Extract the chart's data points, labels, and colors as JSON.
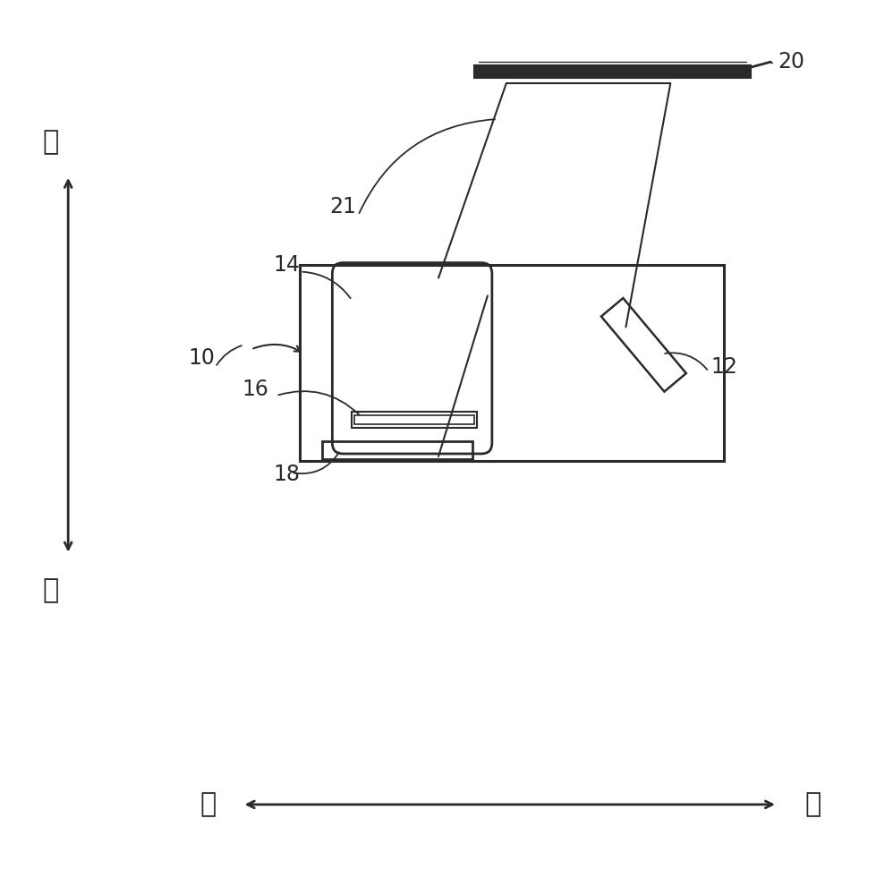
{
  "bg_color": "#ffffff",
  "line_color": "#2a2a2a",
  "fig_width": 9.98,
  "fig_height": 10.0,
  "front_text": "前",
  "back_text": "后",
  "left_text": "左",
  "right_text": "右"
}
